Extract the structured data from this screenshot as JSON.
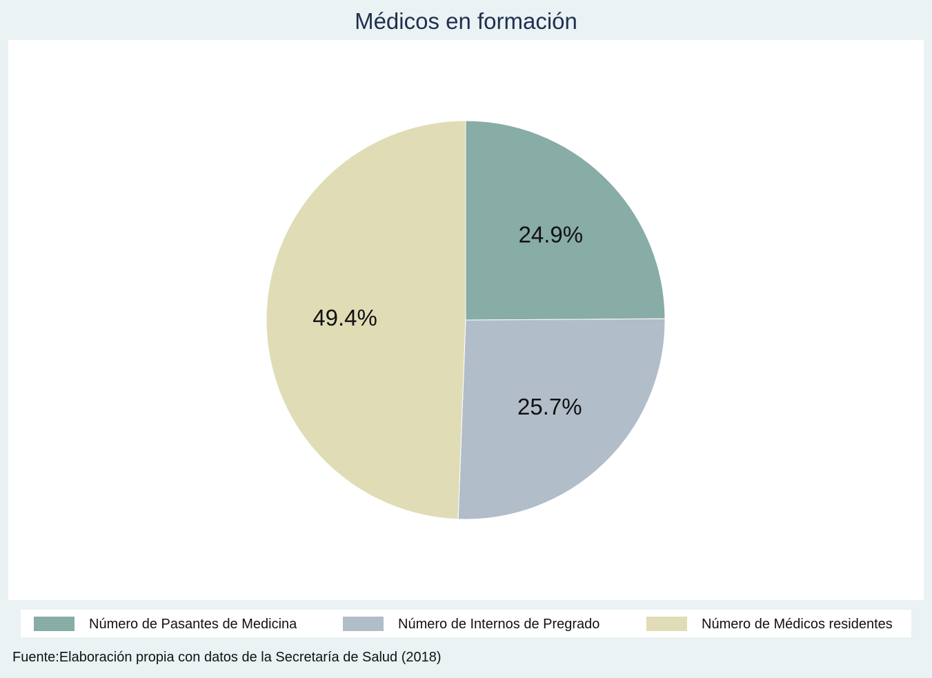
{
  "chart_data": {
    "type": "pie",
    "title": "Médicos en formación",
    "slices": [
      {
        "name": "Número de Pasantes de Medicina",
        "value": 24.9,
        "label": "24.9%",
        "color": "#88aca6"
      },
      {
        "name": "Número de Internos de Pregrado",
        "value": 25.7,
        "label": "25.7%",
        "color": "#b1bdc9"
      },
      {
        "name": "Número de Médicos residentes",
        "value": 49.4,
        "label": "49.4%",
        "color": "#e0dcb6"
      }
    ],
    "legend_placement": "bottom",
    "start_angle": "12 o'clock",
    "direction": "clockwise"
  },
  "source": "Fuente:Elaboración propia con datos de la Secretaría de Salud (2018)",
  "colors": {
    "background": "#eaf2f3",
    "plot_background": "#ffffff",
    "title": "#1f2f50"
  }
}
